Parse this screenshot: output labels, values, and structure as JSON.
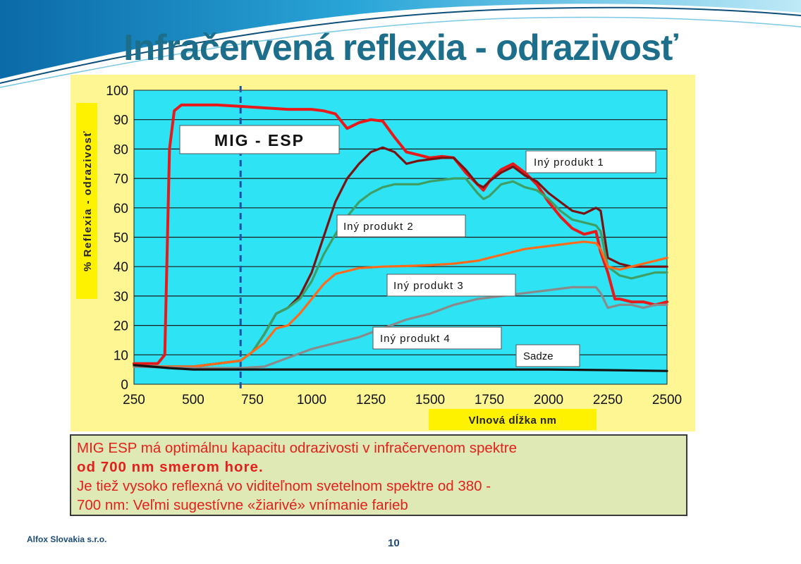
{
  "slide": {
    "title": "Infračervená reflexia - odrazivosť",
    "footer_company": "Alfox Slovakia s.r.o.",
    "page_number": "10"
  },
  "info_box": {
    "line1": "MIG ESP má optimálnu kapacitu odrazivosti v infračervenom spektre",
    "line2": "od 700 nm smerom hore.",
    "line3": "Je tiež vysoko reflexná vo viditeľnom svetelnom spektre od 380 -",
    "line4": "700 nm: Veľmi sugestívne «žiarivé» vnímanie farieb"
  },
  "colors": {
    "plot_background": "#2ee3f3",
    "frame_background": "#fdf692",
    "label_background": "#fff200",
    "info_text": "#e3201c",
    "info_background": "#dfe9b5",
    "title": "#1c6e8a"
  },
  "chart_data": {
    "type": "line",
    "title": "",
    "xlabel": "Vlnová dĺžka nm",
    "ylabel": "% Reflexia - odrazivosť",
    "xlim": [
      250,
      2500
    ],
    "ylim": [
      0,
      100
    ],
    "xticks": [
      250,
      500,
      750,
      1000,
      1250,
      1500,
      1750,
      2000,
      2250,
      2500
    ],
    "yticks": [
      0,
      10,
      20,
      30,
      40,
      50,
      60,
      70,
      80,
      90,
      100
    ],
    "grid": "horizontal",
    "reference_line": {
      "x": 700,
      "style": "dashed",
      "color": "#1a4fa8"
    },
    "series": [
      {
        "name": "MIG - ESP",
        "color": "#e8191a",
        "x": [
          250,
          300,
          350,
          380,
          400,
          420,
          450,
          500,
          600,
          700,
          800,
          900,
          1000,
          1050,
          1100,
          1150,
          1200,
          1250,
          1300,
          1350,
          1400,
          1450,
          1500,
          1550,
          1600,
          1650,
          1700,
          1725,
          1750,
          1800,
          1850,
          1900,
          1950,
          2000,
          2050,
          2100,
          2150,
          2200,
          2220,
          2250,
          2280,
          2300,
          2350,
          2400,
          2450,
          2500
        ],
        "y": [
          7,
          7,
          7,
          10,
          80,
          93,
          95,
          95,
          95,
          94.5,
          94,
          93.5,
          93.5,
          93,
          92,
          87,
          89,
          90,
          89.5,
          84,
          79,
          78,
          77,
          77.5,
          77,
          72,
          68,
          66,
          69,
          73,
          75,
          72,
          68,
          62,
          57,
          53,
          51,
          52,
          45,
          38,
          29,
          29,
          28,
          28,
          27,
          28
        ]
      },
      {
        "name": "Iný produkt 1",
        "color": "#7a1212",
        "x": [
          250,
          500,
          700,
          750,
          800,
          850,
          900,
          950,
          1000,
          1050,
          1100,
          1150,
          1200,
          1250,
          1300,
          1350,
          1400,
          1450,
          1500,
          1550,
          1600,
          1650,
          1700,
          1725,
          1750,
          1800,
          1850,
          1900,
          1950,
          2000,
          2050,
          2100,
          2150,
          2200,
          2220,
          2250,
          2300,
          2350,
          2400,
          2450,
          2500
        ],
        "y": [
          6,
          6,
          8,
          11,
          17,
          24,
          26,
          30,
          38,
          50,
          62,
          70,
          75,
          79,
          80.5,
          79,
          75,
          76,
          76.5,
          77,
          77,
          73,
          68,
          67,
          69,
          72,
          74,
          71,
          69,
          65,
          62,
          59,
          58,
          60,
          59,
          43,
          41,
          40,
          40,
          40,
          40
        ]
      },
      {
        "name": "Iný produkt 2",
        "color": "#3f9e64",
        "x": [
          250,
          500,
          700,
          750,
          800,
          850,
          900,
          950,
          1000,
          1050,
          1100,
          1150,
          1200,
          1250,
          1300,
          1350,
          1400,
          1450,
          1500,
          1550,
          1600,
          1650,
          1700,
          1725,
          1750,
          1800,
          1850,
          1900,
          1950,
          2000,
          2050,
          2100,
          2150,
          2200,
          2220,
          2250,
          2300,
          2350,
          2400,
          2450,
          2500
        ],
        "y": [
          6,
          6,
          8,
          11,
          17,
          24,
          26,
          29,
          35,
          44,
          51,
          57,
          62,
          65,
          67,
          68,
          68,
          68,
          69,
          69.5,
          70,
          70,
          65,
          63,
          64,
          68,
          69,
          67,
          66,
          63,
          59,
          56,
          55,
          54,
          52,
          40,
          37,
          36,
          37,
          38,
          38
        ]
      },
      {
        "name": "Iný produkt 3",
        "color": "#ff6a1a",
        "x": [
          250,
          500,
          700,
          750,
          800,
          850,
          900,
          950,
          1000,
          1050,
          1100,
          1150,
          1200,
          1300,
          1400,
          1500,
          1600,
          1700,
          1800,
          1900,
          2000,
          2100,
          2150,
          2200,
          2220,
          2250,
          2300,
          2350,
          2400,
          2450,
          2500
        ],
        "y": [
          6,
          6,
          8,
          11,
          14,
          19,
          20,
          24,
          29,
          34,
          37.5,
          38.5,
          39.5,
          40,
          40.2,
          40.5,
          41,
          42,
          44,
          46,
          47,
          48,
          48.5,
          48,
          46,
          40,
          39,
          40,
          41,
          42,
          43
        ]
      },
      {
        "name": "Iný produkt 4",
        "color": "#8a8a8a",
        "x": [
          250,
          500,
          700,
          800,
          900,
          1000,
          1100,
          1200,
          1300,
          1400,
          1500,
          1600,
          1700,
          1800,
          1900,
          2000,
          2100,
          2200,
          2220,
          2250,
          2300,
          2350,
          2400,
          2450,
          2500
        ],
        "y": [
          6,
          5.5,
          5.5,
          6,
          9,
          12,
          14,
          16,
          19,
          22,
          24,
          27,
          29,
          30,
          31,
          32,
          33,
          33,
          31,
          26,
          27,
          27,
          26,
          27,
          27
        ]
      },
      {
        "name": "Sadze",
        "color": "#141414",
        "x": [
          250,
          400,
          500,
          700,
          1000,
          1500,
          2000,
          2250,
          2500
        ],
        "y": [
          6.5,
          5.5,
          5,
          5,
          5,
          5,
          5,
          4.8,
          4.5
        ]
      }
    ],
    "labels": [
      {
        "text": "MIG - ESP",
        "series": "MIG - ESP"
      },
      {
        "text": "Iný produkt 1",
        "series": "Iný produkt 1"
      },
      {
        "text": "Iný produkt 2",
        "series": "Iný produkt 2"
      },
      {
        "text": "Iný produkt 3",
        "series": "Iný produkt 3"
      },
      {
        "text": "Iný produkt 4",
        "series": "Iný produkt 4"
      },
      {
        "text": "Sadze",
        "series": "Sadze"
      }
    ]
  }
}
